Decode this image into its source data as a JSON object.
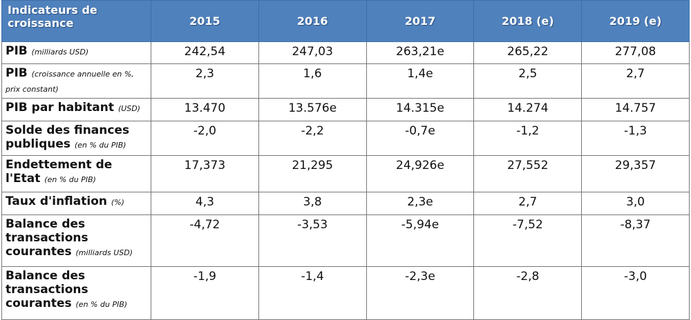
{
  "header": {
    "label": "Indicateurs de croissance",
    "years": [
      "2015",
      "2016",
      "2017",
      "2018 (e)",
      "2019 (e)"
    ]
  },
  "rows": [
    {
      "label": "PIB",
      "unit": "(milliards USD)",
      "values": [
        "242,54",
        "247,03",
        "263,21e",
        "265,22",
        "277,08"
      ]
    },
    {
      "label": "PIB",
      "unit": "(croissance annuelle en %, prix constant)",
      "values": [
        "2,3",
        "1,6",
        "1,4e",
        "2,5",
        "2,7"
      ]
    },
    {
      "label": "PIB par habitant",
      "unit": "(USD)",
      "values": [
        "13.470",
        "13.576e",
        "14.315e",
        "14.274",
        "14.757"
      ]
    },
    {
      "label": "Solde des finances publiques",
      "unit": "(en % du PIB)",
      "values": [
        "-2,0",
        "-2,2",
        "-0,7e",
        "-1,2",
        "-1,3"
      ]
    },
    {
      "label": "Endettement de l'Etat",
      "unit": "(en % du PIB)",
      "values": [
        "17,373",
        "21,295",
        "24,926e",
        "27,552",
        "29,357"
      ]
    },
    {
      "label": "Taux d'inflation",
      "unit": "(%)",
      "values": [
        "4,3",
        "3,8",
        "2,3e",
        "2,7",
        "3,0"
      ]
    },
    {
      "label": "Balance des transactions courantes",
      "unit": "(milliards USD)",
      "values": [
        "-4,72",
        "-3,53",
        "-5,94e",
        "-7,52",
        "-8,37"
      ]
    },
    {
      "label": "Balance des transactions courantes",
      "unit": "(en % du PIB)",
      "values": [
        "-1,9",
        "-1,4",
        "-2,3e",
        "-2,8",
        "-3,0"
      ]
    }
  ]
}
